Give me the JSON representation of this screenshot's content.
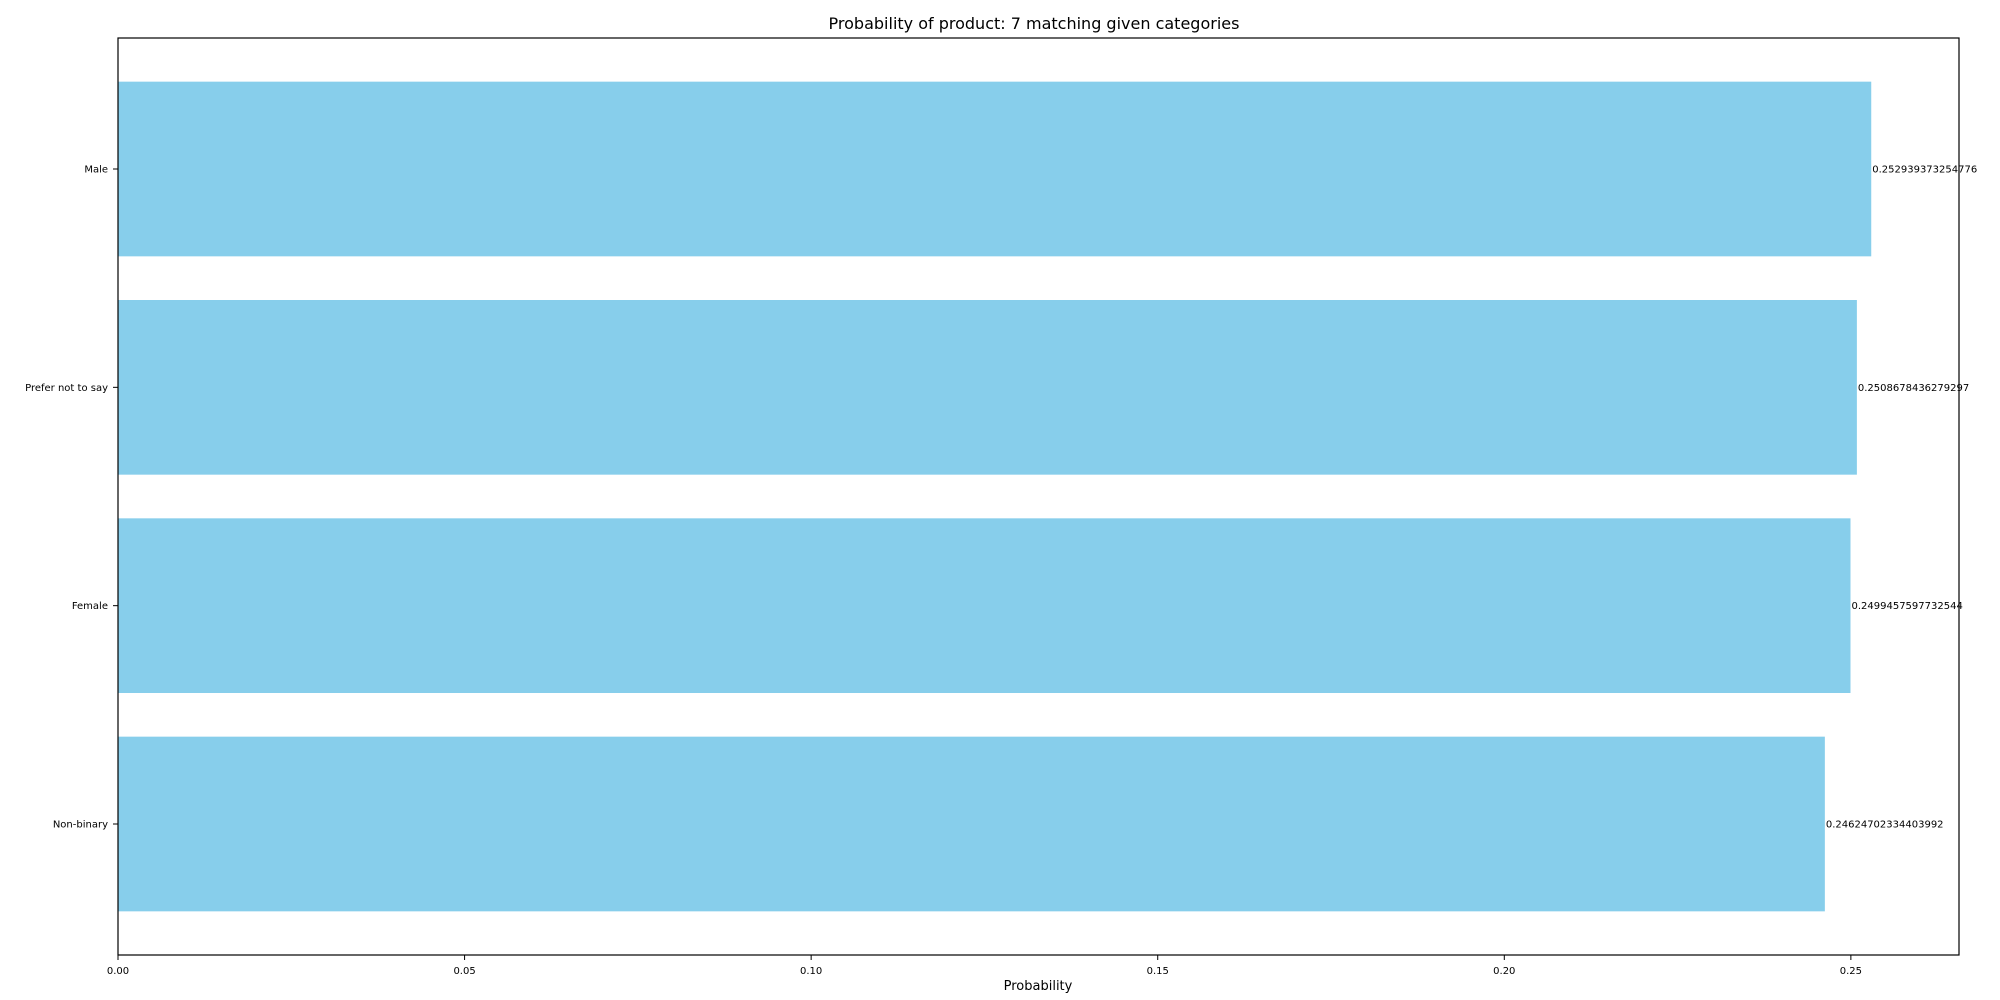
{
  "chart_data": {
    "type": "bar",
    "orientation": "horizontal",
    "title": "Probability of product: 7 matching given categories",
    "xlabel": "Probability",
    "ylabel": "",
    "categories": [
      "Male",
      "Prefer not to say",
      "Female",
      "Non-binary"
    ],
    "values": [
      0.252939373254776,
      0.2508678436279297,
      0.2499457597732544,
      0.24624702334403992
    ],
    "data_labels": [
      "0.252939373254776",
      "0.2508678436279297",
      "0.2499457597732544",
      "0.24624702334403992"
    ],
    "xlim": [
      0,
      0.2656
    ],
    "x_ticks": [
      0,
      0.05,
      0.1,
      0.15,
      0.2,
      0.25
    ],
    "x_tick_labels": [
      "0.00",
      "0.05",
      "0.10",
      "0.15",
      "0.20",
      "0.25"
    ],
    "bar_color": "#87ceeb",
    "grid": false,
    "legend": "none"
  }
}
